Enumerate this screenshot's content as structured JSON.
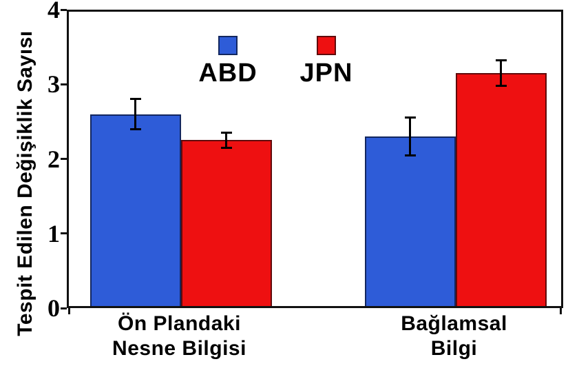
{
  "figure": {
    "background": "#ffffff"
  },
  "chart_data": {
    "type": "bar",
    "title": "",
    "ylabel": "Tespit Edilen Değişiklik Sayısı",
    "xlabel": "",
    "ylim": [
      0,
      4
    ],
    "yticks": [
      0,
      1,
      2,
      3,
      4
    ],
    "grid": false,
    "legend_position": "inside-top-center",
    "categories": [
      "Ön Plandaki\nNesne Bilgisi",
      "Bağlamsal\nBilgi"
    ],
    "series": [
      {
        "name": "ABD",
        "color": "#2e5cd8",
        "border_color": "#13275f",
        "values": [
          2.6,
          2.3
        ],
        "errors": [
          0.2,
          0.25
        ]
      },
      {
        "name": "JPN",
        "color": "#ee1011",
        "border_color": "#600a0b",
        "values": [
          2.25,
          3.15
        ],
        "errors": [
          0.1,
          0.17
        ]
      }
    ],
    "error_bar_color": "#000000",
    "axis_color": "#111111",
    "text_color": "#000000"
  }
}
